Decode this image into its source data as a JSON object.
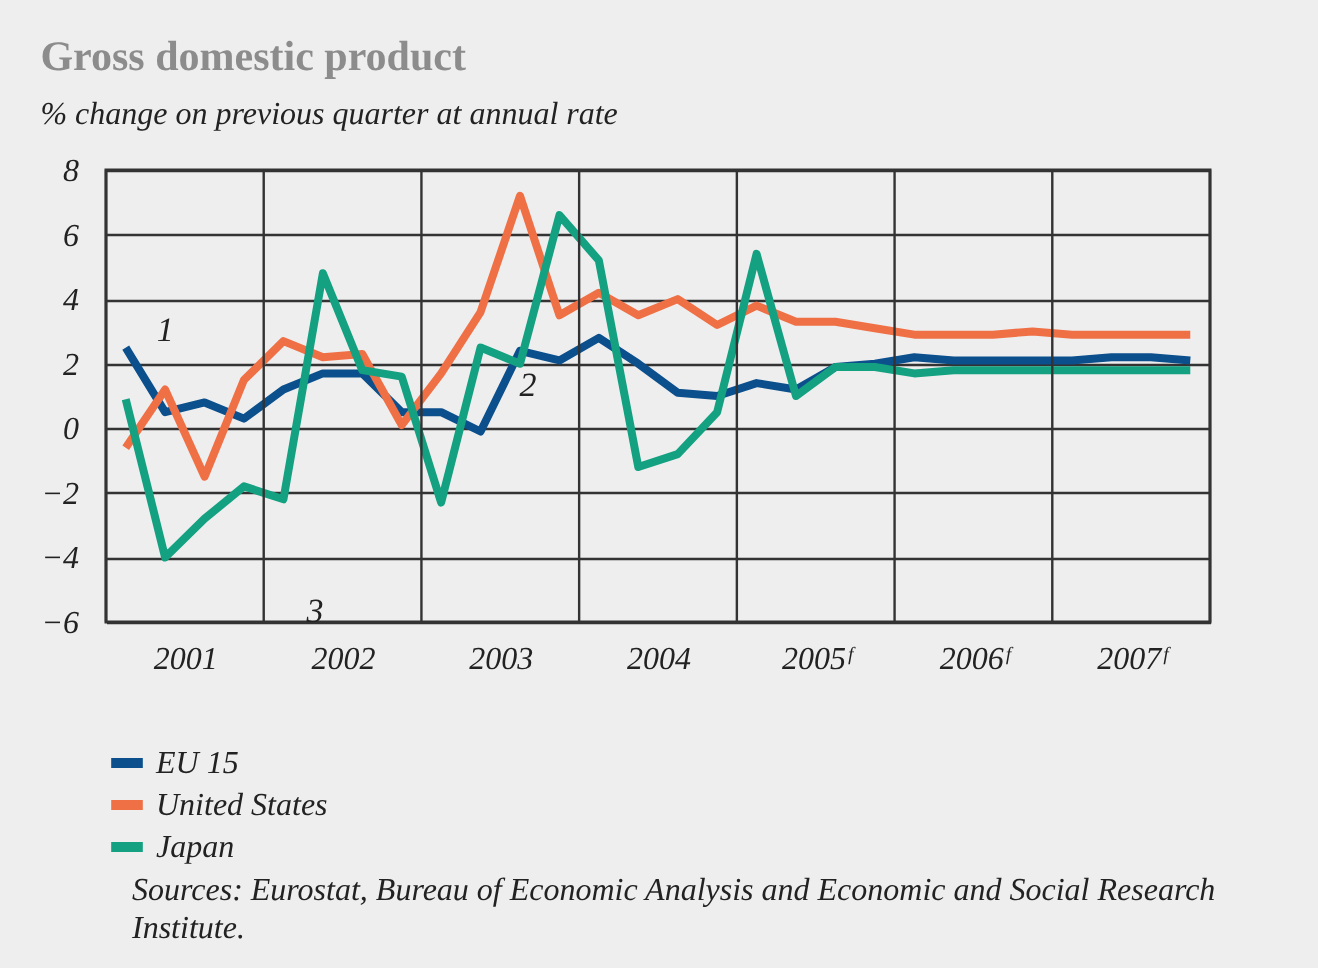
{
  "chart_data": {
    "type": "line",
    "title": "Gross domestic product",
    "subtitle": "% change on previous quarter at annual rate",
    "x": [
      2001.125,
      2001.375,
      2001.625,
      2001.875,
      2002.125,
      2002.375,
      2002.625,
      2002.875,
      2003.125,
      2003.375,
      2003.625,
      2003.875,
      2004.125,
      2004.375,
      2004.625,
      2004.875,
      2005.125,
      2005.375,
      2005.625,
      2005.875,
      2006.125,
      2006.375,
      2006.625,
      2006.875,
      2007.125,
      2007.375,
      2007.625,
      2007.875
    ],
    "series": [
      {
        "name": "EU 15",
        "color": "#0b4f8c",
        "values": [
          2.5,
          0.5,
          0.8,
          0.3,
          1.2,
          1.7,
          1.7,
          0.5,
          0.5,
          -0.1,
          2.4,
          2.1,
          2.8,
          2.0,
          1.1,
          1.0,
          1.4,
          1.2,
          1.9,
          2.0,
          2.2,
          2.1,
          2.1,
          2.1,
          2.1,
          2.2,
          2.2,
          2.1
        ]
      },
      {
        "name": "United States",
        "color": "#f07046",
        "values": [
          -0.6,
          1.2,
          -1.5,
          1.5,
          2.7,
          2.2,
          2.3,
          0.1,
          1.7,
          3.6,
          7.2,
          3.5,
          4.2,
          3.5,
          4.0,
          3.2,
          3.8,
          3.3,
          3.3,
          3.1,
          2.9,
          2.9,
          2.9,
          3.0,
          2.9,
          2.9,
          2.9,
          2.9
        ]
      },
      {
        "name": "Japan",
        "color": "#13a181",
        "values": [
          0.9,
          -4.0,
          -2.8,
          -1.8,
          -2.2,
          4.8,
          1.8,
          1.6,
          -2.3,
          2.5,
          2.0,
          6.6,
          5.2,
          -1.2,
          -0.8,
          0.5,
          5.4,
          1.0,
          1.9,
          1.9,
          1.7,
          1.8,
          1.8,
          1.8,
          1.8,
          1.8,
          1.8,
          1.8
        ]
      }
    ],
    "xlim": [
      2001,
      2008
    ],
    "xticks": [
      {
        "value": 2001,
        "label": null
      },
      {
        "value": 2001.5,
        "label": "2001"
      },
      {
        "value": 2002,
        "label": null
      },
      {
        "value": 2002.5,
        "label": "2002"
      },
      {
        "value": 2003,
        "label": null
      },
      {
        "value": 2003.5,
        "label": "2003"
      },
      {
        "value": 2004,
        "label": null
      },
      {
        "value": 2004.5,
        "label": "2004"
      },
      {
        "value": 2005,
        "label": null
      },
      {
        "value": 2005.5,
        "label": "2005ᶠ"
      },
      {
        "value": 2006,
        "label": null
      },
      {
        "value": 2006.5,
        "label": "2006ᶠ"
      },
      {
        "value": 2007,
        "label": null
      },
      {
        "value": 2007.5,
        "label": "2007ᶠ"
      },
      {
        "value": 2008,
        "label": null
      }
    ],
    "ylim": [
      -6,
      8
    ],
    "yticks": [
      -6,
      -4,
      -2,
      0,
      2,
      4,
      6,
      8
    ],
    "grid": true,
    "legend": "bottom left",
    "annotations": [
      "1",
      "2",
      "3",
      "Sources: Eurostat, Bureau of Economic Analysis and Economic and Social Research Institute."
    ]
  }
}
